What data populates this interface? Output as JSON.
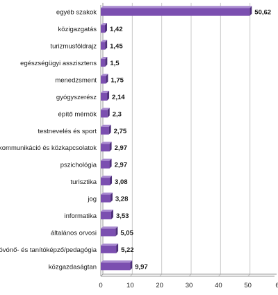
{
  "chart_data": {
    "type": "bar",
    "orientation": "horizontal",
    "categories": [
      "egyéb szakok",
      "közigazgatás",
      "turizmusföldrajz",
      "egészségügyi asszisztens",
      "menedzsment",
      "gyógyszerész",
      "építő mérnök",
      "testnevelés és sport",
      "kommunikáció és közkapcsolatok",
      "pszichológia",
      "turisztika",
      "jog",
      "informatika",
      "általános orvosi",
      "óvónő- és tanítóképző/pedagógia",
      "közgazdaságtan"
    ],
    "values": [
      50.62,
      1.42,
      1.45,
      1.5,
      1.75,
      2.14,
      2.3,
      2.75,
      2.97,
      2.97,
      3.08,
      3.28,
      3.53,
      5.05,
      5.22,
      9.97
    ],
    "value_labels": [
      "50,62",
      "1,42",
      "1,45",
      "1,5",
      "1,75",
      "2,14",
      "2,3",
      "2,75",
      "2,97",
      "2,97",
      "3,08",
      "3,28",
      "3,53",
      "5,05",
      "5,22",
      "9,97"
    ],
    "xlim": [
      0,
      60
    ],
    "xticks": [
      "0",
      "10",
      "20",
      "30",
      "40",
      "50",
      "6"
    ],
    "grid": true,
    "bar_color": "#7b4fb0",
    "title": "",
    "xlabel": "",
    "ylabel": ""
  }
}
